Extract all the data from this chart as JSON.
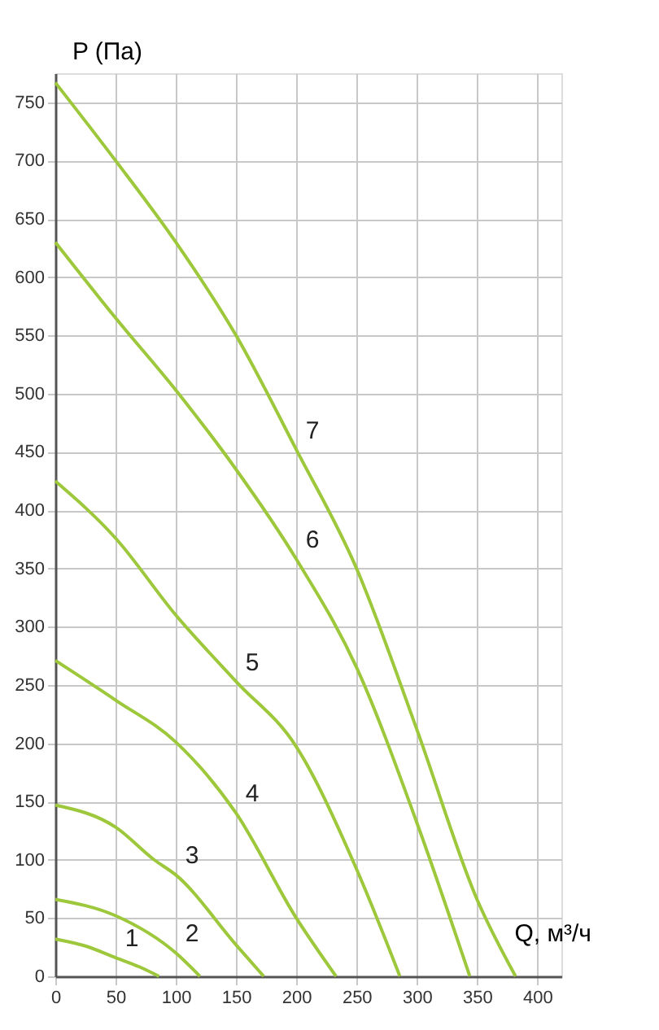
{
  "chart_data": {
    "type": "line",
    "xlabel": "Q, м³/ч",
    "ylabel": "P (Па)",
    "xlim": [
      0,
      420
    ],
    "ylim": [
      0,
      775
    ],
    "xticks": [
      0,
      50,
      100,
      150,
      200,
      250,
      300,
      350,
      400
    ],
    "yticks": [
      0,
      50,
      100,
      150,
      200,
      250,
      300,
      350,
      400,
      450,
      500,
      550,
      600,
      650,
      700,
      750
    ],
    "grid": true,
    "legend": false,
    "marker": "none",
    "line_style": "solid",
    "series": [
      {
        "name": "1",
        "color": "#9dc83c",
        "x": [
          0,
          25,
          50,
          70,
          86
        ],
        "values": [
          32,
          26,
          16,
          8,
          0
        ]
      },
      {
        "name": "2",
        "color": "#9dc83c",
        "x": [
          0,
          50,
          100,
          120
        ],
        "values": [
          66,
          52,
          20,
          0
        ]
      },
      {
        "name": "3",
        "color": "#9dc83c",
        "x": [
          0,
          50,
          82,
          100,
          150,
          173
        ],
        "values": [
          147,
          128,
          100,
          87,
          27,
          0
        ]
      },
      {
        "name": "4",
        "color": "#9dc83c",
        "x": [
          0,
          50,
          100,
          150,
          200,
          233
        ],
        "values": [
          271,
          237,
          201,
          140,
          50,
          0
        ]
      },
      {
        "name": "5",
        "color": "#9dc83c",
        "x": [
          0,
          50,
          100,
          150,
          200,
          250,
          286
        ],
        "values": [
          425,
          376,
          310,
          253,
          197,
          92,
          0
        ]
      },
      {
        "name": "6",
        "color": "#9dc83c",
        "x": [
          0,
          50,
          100,
          150,
          200,
          250,
          300,
          344
        ],
        "values": [
          630,
          565,
          503,
          435,
          358,
          265,
          132,
          0
        ]
      },
      {
        "name": "7",
        "color": "#9dc83c",
        "x": [
          0,
          50,
          100,
          150,
          200,
          250,
          300,
          350,
          382
        ],
        "values": [
          767,
          700,
          630,
          550,
          452,
          350,
          212,
          66,
          0
        ]
      }
    ]
  }
}
